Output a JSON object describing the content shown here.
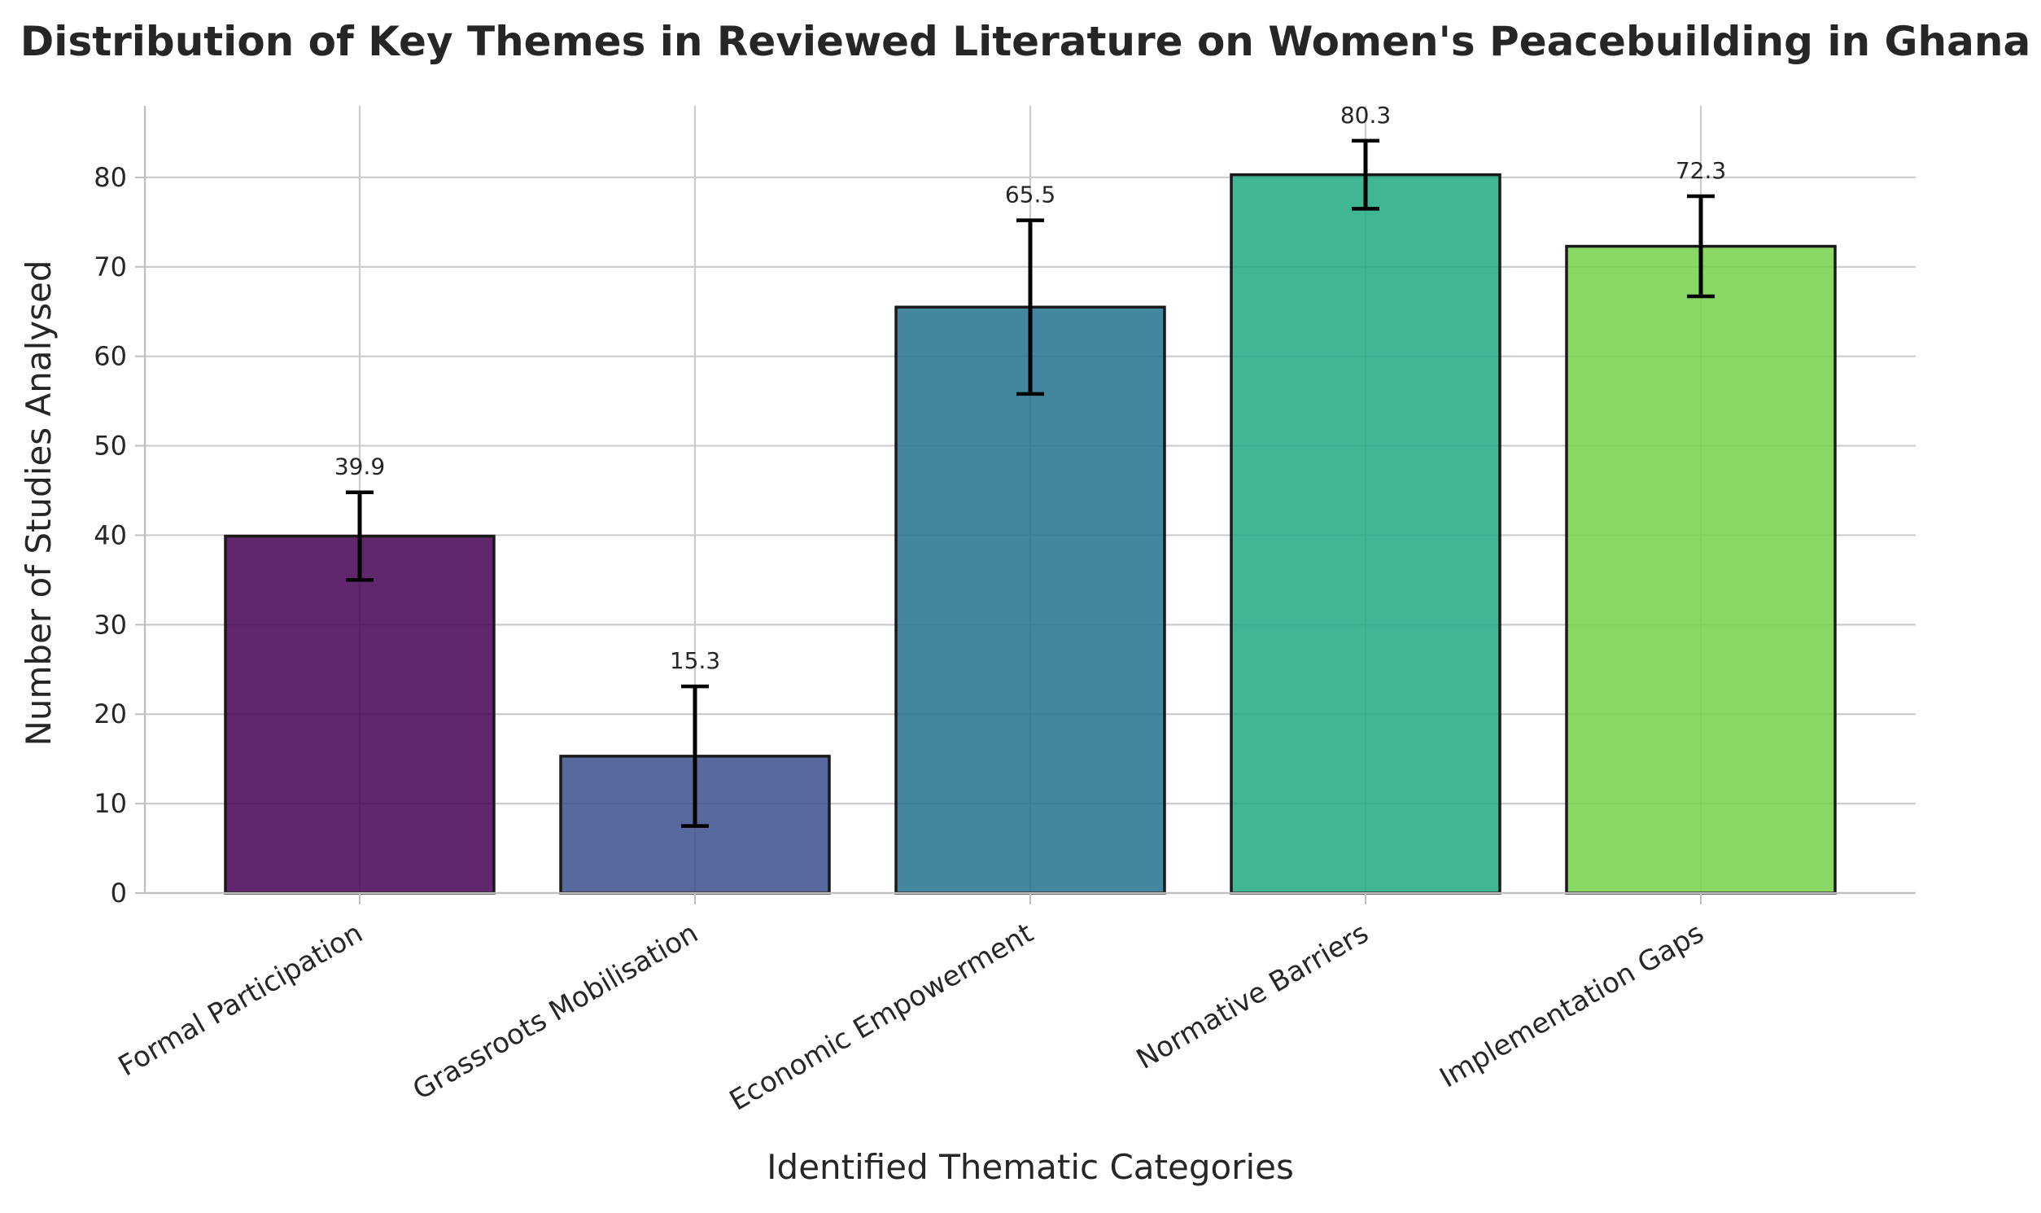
{
  "chart_data": {
    "type": "bar",
    "title": "Distribution of Key Themes in Reviewed Literature on Women's Peacebuilding in Ghana",
    "xlabel": "Identified Thematic Categories",
    "ylabel": "Number of Studies Analysed",
    "categories": [
      "Formal Participation",
      "Grassroots Mobilisation",
      "Economic Empowerment",
      "Normative Barriers",
      "Implementation Gaps"
    ],
    "values": [
      39.9,
      15.3,
      65.5,
      80.3,
      72.3
    ],
    "errors": [
      4.9,
      7.8,
      9.7,
      3.8,
      5.6
    ],
    "value_labels": [
      "39.9",
      "15.3",
      "65.5",
      "80.3",
      "72.3"
    ],
    "ylim": [
      0,
      88
    ],
    "yticks": [
      0,
      10,
      20,
      30,
      40,
      50,
      60,
      70,
      80
    ],
    "grid": true,
    "colors": [
      "#440154",
      "#3b4f8c",
      "#21728c",
      "#20a983",
      "#74d14b"
    ],
    "edge_color": "#1a1a1a",
    "error_color": "#000000",
    "grid_color": "#cccccc",
    "axis_color": "#bfbfbf"
  }
}
